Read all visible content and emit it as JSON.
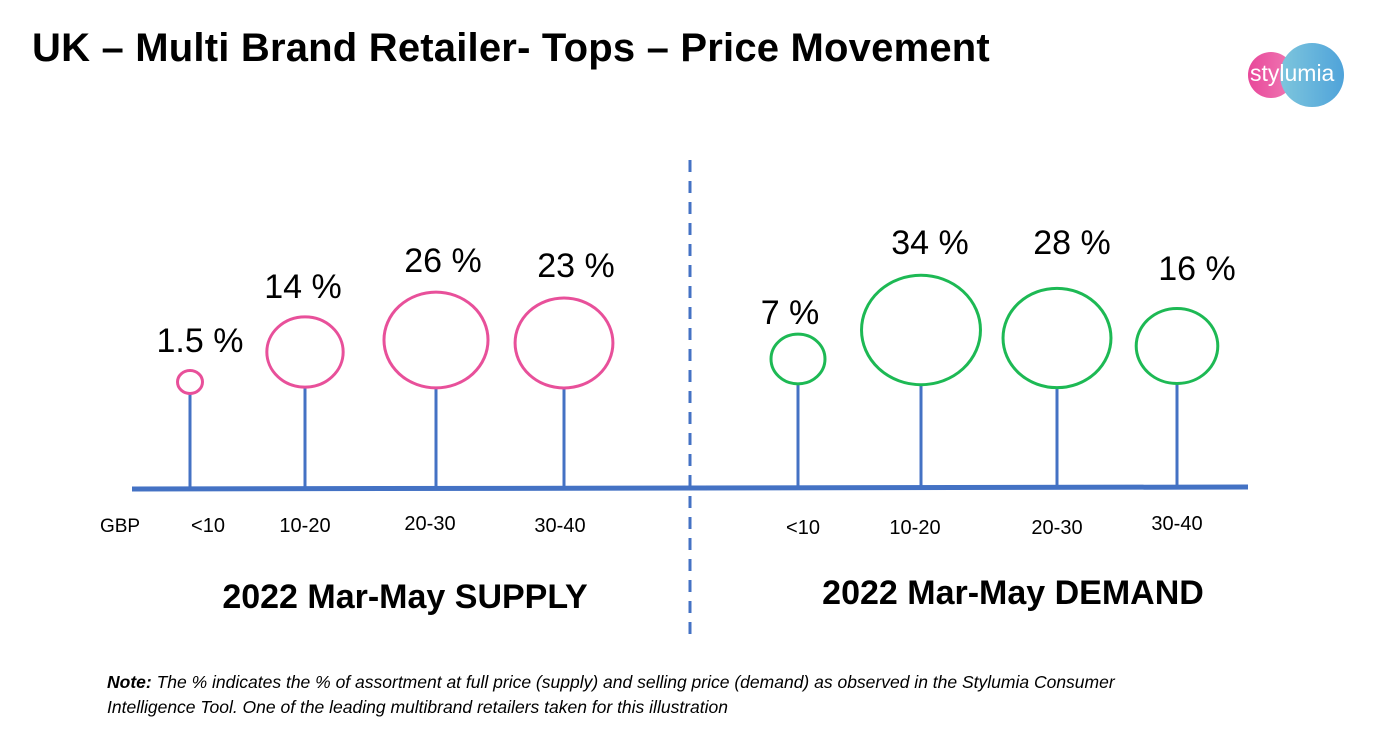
{
  "title": "UK – Multi Brand Retailer- Tops – Price Movement",
  "logo_text": "stylumia",
  "chart_data": {
    "type": "bubble-lollipop",
    "currency_label": "GBP",
    "categories": [
      "<10",
      "10-20",
      "20-30",
      "30-40"
    ],
    "series": [
      {
        "name": "2022 Mar-May SUPPLY",
        "values": [
          1.5,
          14,
          26,
          23
        ],
        "labels": [
          "1.5 %",
          "14 %",
          "26 %",
          "23 %"
        ],
        "color": "#e8509a"
      },
      {
        "name": "2022 Mar-May DEMAND",
        "values": [
          7,
          34,
          28,
          16
        ],
        "labels": [
          "7 %",
          "34 %",
          "28 %",
          "16 %"
        ],
        "color": "#1db954"
      }
    ],
    "axis_color": "#4472c4"
  },
  "note": {
    "label": "Note:",
    "text": " The % indicates the % of assortment at full price (supply) and selling price (demand) as observed in the Stylumia Consumer Intelligence Tool. One of the leading multibrand retailers taken for this illustration"
  }
}
